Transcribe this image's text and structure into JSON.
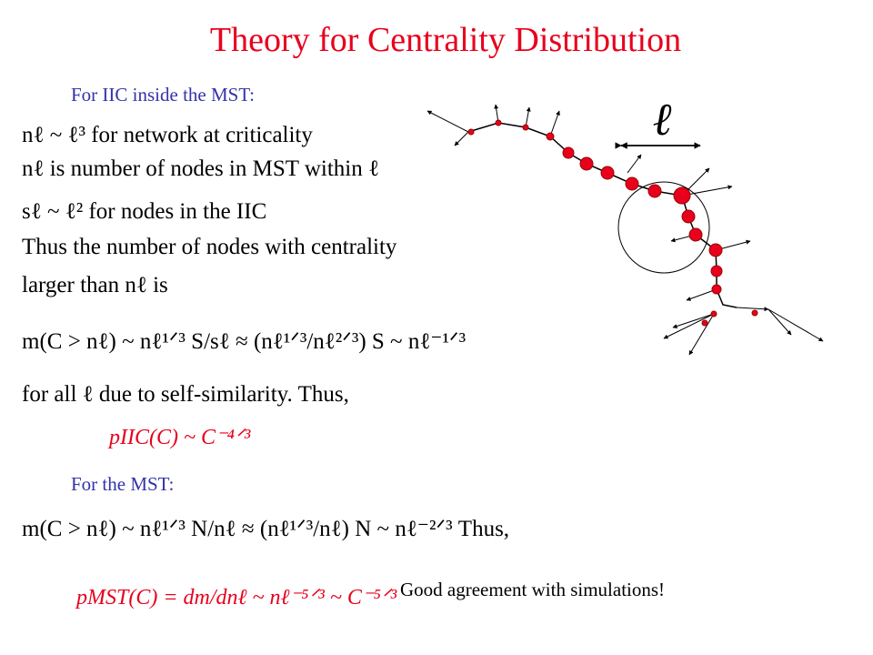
{
  "title": "Theory  for Centrality Distribution",
  "iic": {
    "heading": "For IIC inside the MST:",
    "lines": [
      "nℓ ~ ℓ³   for network at criticality",
      "nℓ is number of nodes in MST within ℓ",
      "sℓ ~ ℓ²  for nodes in the IIC",
      "Thus the number of nodes with centrality",
      "larger than nℓ is",
      "m(C > nℓ) ~ nℓ¹ᐟ³ S/sℓ ≈ (nℓ¹ᐟ³/nℓ²ᐟ³) S ~ nℓ⁻¹ᐟ³",
      "for all ℓ due to self-similarity. Thus,"
    ],
    "result": "pIIC(C) ~ C⁻⁴ᐟ³"
  },
  "mst": {
    "heading": "For the MST:",
    "formula": "m(C > nℓ) ~ nℓ¹ᐟ³ N/nℓ ≈ (nℓ¹ᐟ³/nℓ) N ~ nℓ⁻²ᐟ³   Thus,",
    "result": "pMST(C) = dm/dnℓ ~ nℓ⁻⁵ᐟ³ ~ C⁻⁵ᐟ³"
  },
  "diagram_label": "ℓ",
  "conclusion": "Good agreement with simulations!"
}
